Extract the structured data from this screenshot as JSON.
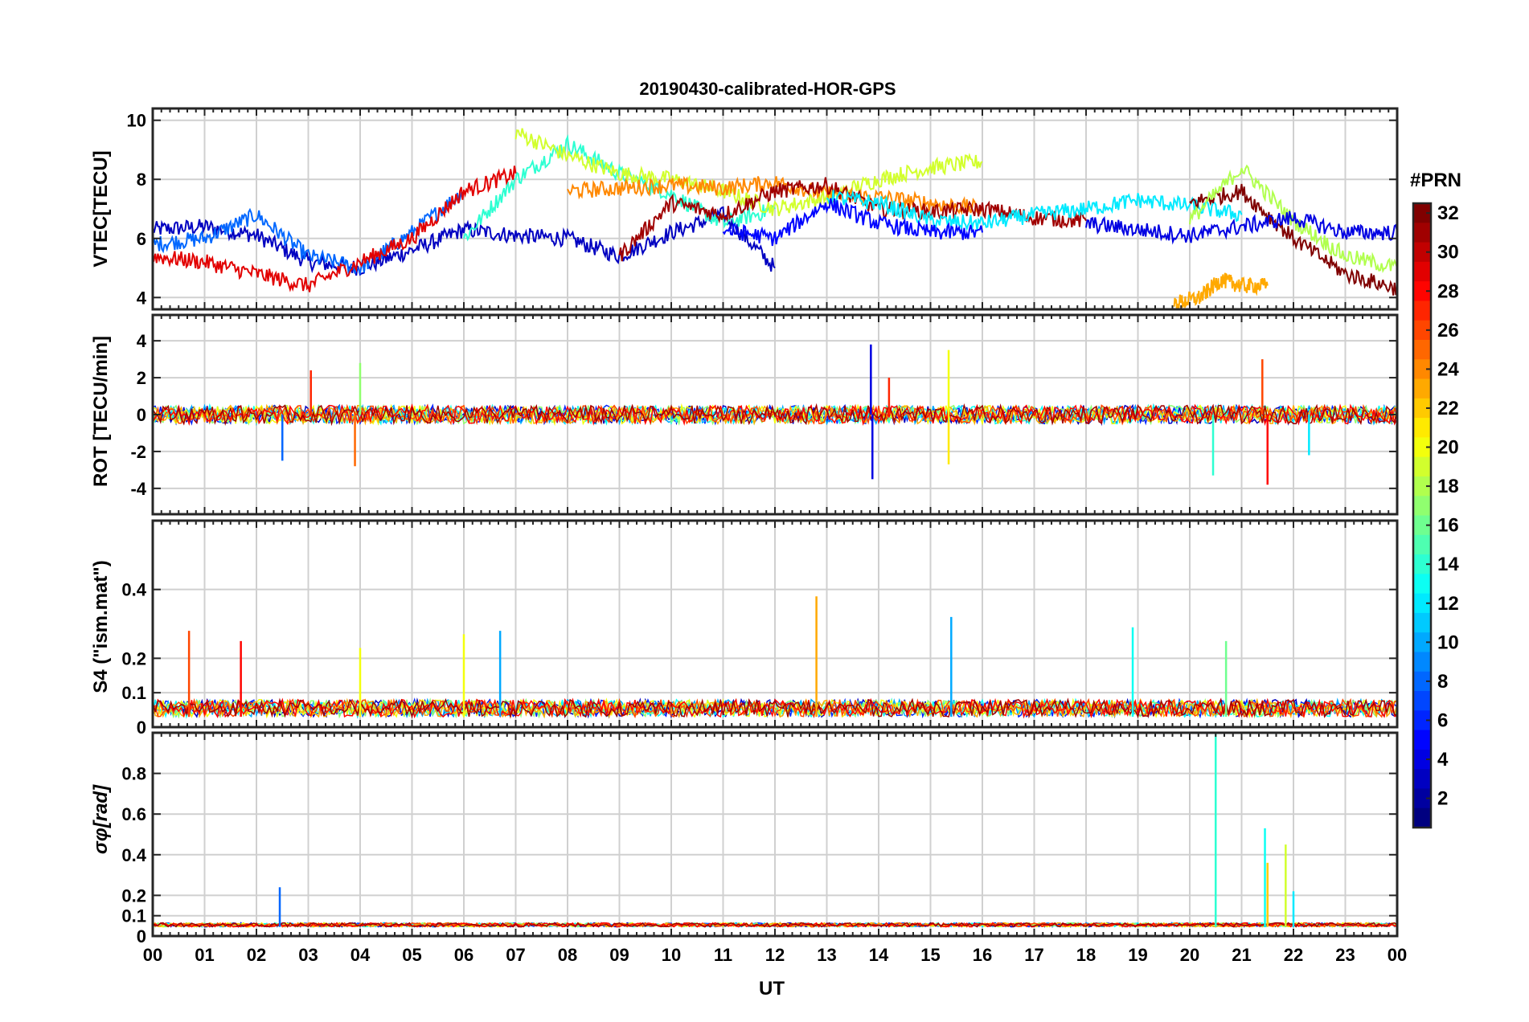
{
  "chart_data": {
    "title": "20190430-calibrated-HOR-GPS",
    "type": "line",
    "xlabel": "UT",
    "x_ticks": [
      "00",
      "01",
      "02",
      "03",
      "04",
      "05",
      "06",
      "07",
      "08",
      "09",
      "10",
      "11",
      "12",
      "13",
      "14",
      "15",
      "16",
      "17",
      "18",
      "19",
      "20",
      "21",
      "22",
      "23",
      "00"
    ],
    "xlim": [
      0,
      24
    ],
    "colorbar": {
      "label": "#PRN",
      "range": [
        1,
        32
      ],
      "ticks": [
        "2",
        "4",
        "6",
        "8",
        "10",
        "12",
        "14",
        "16",
        "18",
        "20",
        "22",
        "24",
        "26",
        "28",
        "30",
        "32"
      ]
    },
    "panels": [
      {
        "id": "vtec",
        "ylabel": "VTEC[TECU]",
        "ylim": [
          3.6,
          10.4
        ],
        "yticks": [
          4,
          6,
          8,
          10
        ],
        "yticklabels": [
          "4",
          "6",
          "8",
          "10"
        ],
        "grid": true,
        "description": "Vertical TEC per GPS PRN; values mostly 4-9 TECU with a daytime maximum around 8-9 TECU",
        "series": [
          {
            "prn": 3,
            "x": [
              0,
              1,
              2,
              3,
              4,
              5,
              6,
              7,
              8,
              9,
              10,
              11,
              12
            ],
            "y": [
              6.3,
              6.4,
              6.1,
              5.2,
              5.0,
              5.6,
              6.3,
              6.1,
              6.0,
              5.4,
              6.2,
              6.8,
              5.0
            ]
          },
          {
            "prn": 8,
            "x": [
              0,
              1,
              2,
              3,
              4,
              5,
              6
            ],
            "y": [
              5.8,
              6.0,
              6.8,
              5.4,
              5.0,
              6.2,
              7.6
            ]
          },
          {
            "prn": 14,
            "x": [
              6,
              7,
              8,
              9,
              10,
              11,
              12
            ],
            "y": [
              6.0,
              8.0,
              9.2,
              8.2,
              7.5,
              6.5,
              7.0
            ]
          },
          {
            "prn": 19,
            "x": [
              7,
              8,
              9,
              10,
              11,
              12,
              13,
              14,
              15,
              16
            ],
            "y": [
              9.6,
              8.8,
              8.2,
              8.0,
              7.6,
              7.0,
              7.4,
              8.0,
              8.4,
              8.6
            ]
          },
          {
            "prn": 29,
            "x": [
              0,
              1,
              2,
              3,
              4,
              5,
              6,
              7
            ],
            "y": [
              5.4,
              5.2,
              4.8,
              4.4,
              5.2,
              6.0,
              7.6,
              8.2
            ]
          },
          {
            "prn": 24,
            "x": [
              8,
              9,
              10,
              11,
              12,
              13,
              14,
              15,
              16
            ],
            "y": [
              7.6,
              7.7,
              7.8,
              7.7,
              7.9,
              7.5,
              7.4,
              7.2,
              7.0
            ]
          },
          {
            "prn": 31,
            "x": [
              9,
              10,
              11,
              12,
              13,
              14,
              15,
              16,
              17,
              18
            ],
            "y": [
              5.4,
              7.2,
              6.8,
              7.6,
              7.8,
              7.0,
              6.9,
              7.0,
              6.7,
              6.6
            ]
          },
          {
            "prn": 12,
            "x": [
              13,
              14,
              15,
              16,
              17,
              18,
              19,
              20,
              21
            ],
            "y": [
              7.4,
              7.2,
              6.6,
              6.5,
              6.8,
              7.0,
              7.3,
              7.1,
              6.8
            ]
          },
          {
            "prn": 5,
            "x": [
              11,
              12,
              13,
              14,
              15,
              16
            ],
            "y": [
              6.3,
              6.0,
              7.2,
              6.5,
              6.2,
              6.2
            ]
          },
          {
            "prn": 32,
            "x": [
              20,
              21,
              22,
              23,
              24
            ],
            "y": [
              7.2,
              7.6,
              6.0,
              4.8,
              4.3
            ]
          },
          {
            "prn": 18,
            "x": [
              20,
              21,
              22,
              23,
              24
            ],
            "y": [
              6.6,
              8.4,
              6.6,
              5.4,
              5.0
            ]
          },
          {
            "prn": 4,
            "x": [
              18,
              19,
              20,
              21,
              22,
              23,
              24
            ],
            "y": [
              6.5,
              6.3,
              6.1,
              6.4,
              6.7,
              6.2,
              6.2
            ]
          },
          {
            "prn": 23,
            "x": [
              19.7,
              20.2,
              20.6,
              21,
              21.5
            ],
            "y": [
              3.8,
              4.0,
              4.6,
              4.4,
              4.4
            ]
          }
        ]
      },
      {
        "id": "rot",
        "ylabel": "ROT [TECU/min]",
        "ylim": [
          -5.4,
          5.4
        ],
        "yticks": [
          -4,
          -2,
          0,
          2,
          4
        ],
        "yticklabels": [
          "-4",
          "-2",
          "0",
          "2",
          "4"
        ],
        "grid": true,
        "description": "Rate of TEC; noise around 0 with spikes up to +3.8 and -3.8 TECU/min near 14 UT and 21.5 UT",
        "spikes": [
          {
            "prn": 8,
            "x": 2.5,
            "y": -2.5
          },
          {
            "prn": 27,
            "x": 3.05,
            "y": 2.4
          },
          {
            "prn": 25,
            "x": 3.9,
            "y": -2.8
          },
          {
            "prn": 17,
            "x": 4.0,
            "y": 2.8
          },
          {
            "prn": 4,
            "x": 13.85,
            "y": 3.8
          },
          {
            "prn": 4,
            "x": 13.88,
            "y": -3.5
          },
          {
            "prn": 27,
            "x": 14.2,
            "y": 2.0
          },
          {
            "prn": 20,
            "x": 15.35,
            "y": 3.5
          },
          {
            "prn": 21,
            "x": 15.35,
            "y": -2.7
          },
          {
            "prn": 14,
            "x": 20.45,
            "y": -3.3
          },
          {
            "prn": 28,
            "x": 21.5,
            "y": -3.8
          },
          {
            "prn": 26,
            "x": 21.4,
            "y": 3.0
          },
          {
            "prn": 12,
            "x": 22.3,
            "y": -2.2
          }
        ]
      },
      {
        "id": "s4",
        "ylabel": "S4 (\"ism.mat\")",
        "ylim": [
          0,
          0.6
        ],
        "yticks": [
          0,
          0.1,
          0.2,
          0.4
        ],
        "yticklabels": [
          "0",
          "0.1",
          "0.2",
          "0.4"
        ],
        "grid": true,
        "description": "Amplitude scintillation index; mostly below 0.1 with peaks to about 0.38 at 12.8 UT",
        "peaks": [
          {
            "prn": 26,
            "x": 0.7,
            "y": 0.28
          },
          {
            "prn": 28,
            "x": 1.7,
            "y": 0.25
          },
          {
            "prn": 20,
            "x": 4.0,
            "y": 0.23
          },
          {
            "prn": 20,
            "x": 6.0,
            "y": 0.27
          },
          {
            "prn": 10,
            "x": 6.7,
            "y": 0.28
          },
          {
            "prn": 23,
            "x": 12.8,
            "y": 0.38
          },
          {
            "prn": 10,
            "x": 15.4,
            "y": 0.32
          },
          {
            "prn": 13,
            "x": 18.9,
            "y": 0.29
          },
          {
            "prn": 16,
            "x": 20.7,
            "y": 0.25
          }
        ]
      },
      {
        "id": "sigphi",
        "ylabel": "σφ[rad]",
        "ylim": [
          0,
          1.0
        ],
        "yticks": [
          0,
          0.1,
          0.2,
          0.4,
          0.6,
          0.8
        ],
        "yticklabels": [
          "0",
          "0.1",
          "0.2",
          "0.4",
          "0.6",
          "0.8"
        ],
        "grid": true,
        "description": "Phase scintillation index; mostly near 0.05 with spikes to ~1.0 at 20.5 UT",
        "peaks": [
          {
            "prn": 8,
            "x": 2.45,
            "y": 0.24
          },
          {
            "prn": 14,
            "x": 20.5,
            "y": 1.0
          },
          {
            "prn": 13,
            "x": 21.45,
            "y": 0.53
          },
          {
            "prn": 22,
            "x": 21.5,
            "y": 0.36
          },
          {
            "prn": 19,
            "x": 21.85,
            "y": 0.45
          },
          {
            "prn": 12,
            "x": 22.0,
            "y": 0.22
          }
        ]
      }
    ]
  }
}
